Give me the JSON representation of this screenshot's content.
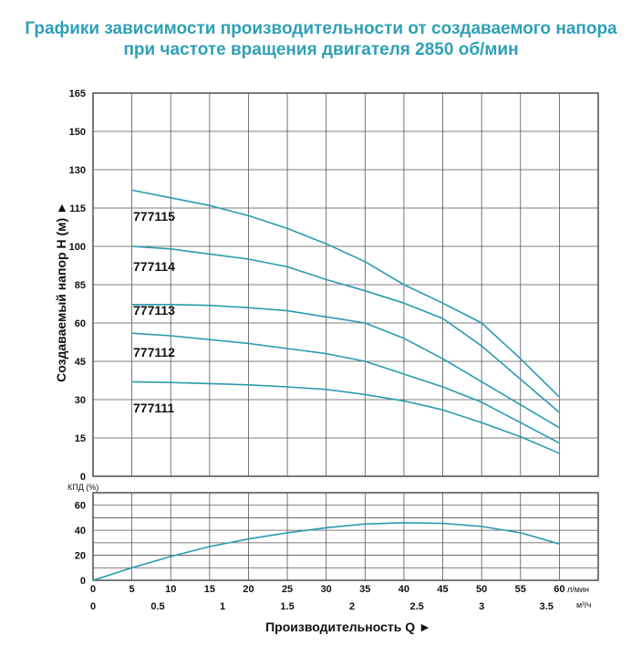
{
  "title_line1": "Графики зависимости производительности от создаваемого напора",
  "title_line2": "при частоте вращения двигателя 2850 об/мин",
  "colors": {
    "title": "#2ea0b7",
    "curve": "#2a9bb0",
    "grid": "#555555"
  },
  "chart_data": [
    {
      "type": "line",
      "ylabel": "Создаваемый напор Н (м) ►",
      "y_ticks": [
        "0",
        "15",
        "30",
        "45",
        "60",
        "85",
        "100",
        "115",
        "130",
        "150",
        "165"
      ],
      "x_ticks_lmin": [
        "0",
        "5",
        "10",
        "15",
        "20",
        "25",
        "30",
        "35",
        "40",
        "45",
        "50",
        "55",
        "60"
      ],
      "xlim": [
        0,
        65
      ],
      "grid": true,
      "series": [
        {
          "name": "777115",
          "x": [
            5,
            10,
            15,
            20,
            25,
            30,
            35,
            40,
            45,
            50,
            55,
            60
          ],
          "y": [
            122,
            119,
            116,
            112,
            107,
            101,
            94,
            85,
            73,
            60,
            46,
            31
          ]
        },
        {
          "name": "777114",
          "x": [
            5,
            10,
            15,
            20,
            25,
            30,
            35,
            40,
            45,
            50,
            55,
            60
          ],
          "y": [
            100,
            99,
            97,
            95,
            92,
            87,
            81,
            73,
            63,
            51,
            38,
            25
          ]
        },
        {
          "name": "777113",
          "x": [
            5,
            10,
            15,
            20,
            25,
            30,
            35,
            40,
            45,
            50,
            55,
            60
          ],
          "y": [
            72,
            72,
            71.5,
            70,
            68,
            64,
            60,
            54,
            46,
            37,
            28,
            19
          ]
        },
        {
          "name": "777112",
          "x": [
            5,
            10,
            15,
            20,
            25,
            30,
            35,
            40,
            45,
            50,
            55,
            60
          ],
          "y": [
            56,
            55,
            53.5,
            52,
            50,
            48,
            45,
            40,
            35,
            29,
            21,
            13
          ]
        },
        {
          "name": "777111",
          "x": [
            5,
            10,
            15,
            20,
            25,
            30,
            35,
            40,
            45,
            50,
            55,
            60
          ],
          "y": [
            37,
            36.7,
            36.3,
            35.8,
            35,
            34,
            32,
            29.5,
            26,
            21,
            15.5,
            9
          ]
        }
      ]
    },
    {
      "type": "line",
      "ylabel": "КПД (%)",
      "y_ticks": [
        "0",
        "20",
        "40",
        "60"
      ],
      "ylim": [
        0,
        70
      ],
      "x_unit": "л/мин",
      "grid": true,
      "series": [
        {
          "x": [
            0,
            5,
            10,
            15,
            20,
            25,
            30,
            35,
            40,
            45,
            50,
            55,
            60
          ],
          "y": [
            0,
            10,
            19,
            27,
            33,
            38,
            42,
            45,
            46,
            45.5,
            43,
            38,
            29
          ]
        }
      ]
    }
  ],
  "x2_ticks": [
    "0",
    "0.5",
    "1",
    "1.5",
    "2",
    "2.5",
    "3",
    "3.5"
  ],
  "x2_unit": "м³/ч",
  "xlabel": "Производительность Q ►"
}
